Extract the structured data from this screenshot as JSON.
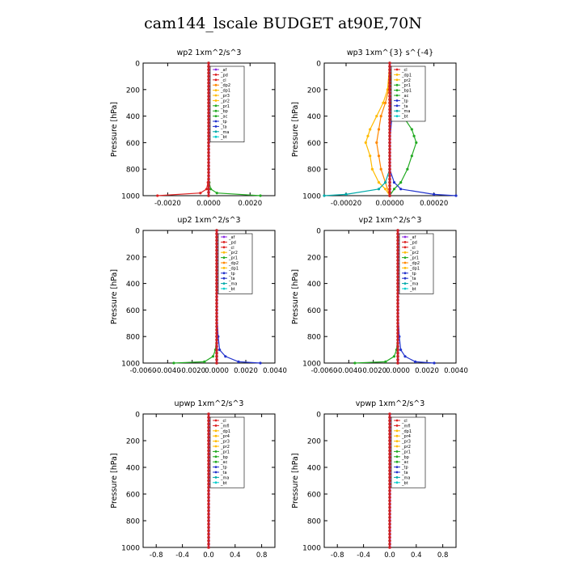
{
  "title": "cam144_lscale  BUDGET at90E,70N",
  "y_axis_label": "Pressure [hPa]",
  "y_ticks": [
    "0",
    "200",
    "400",
    "600",
    "800",
    "1000"
  ],
  "chart_data": [
    {
      "type": "line",
      "title": "wp2   1xm^2/s^3",
      "ylabel": "Pressure [hPa]",
      "ylim": [
        1000,
        0
      ],
      "xlim": [
        -0.0032,
        0.0032
      ],
      "xticks": [
        -0.002,
        0.0,
        0.002
      ],
      "xtick_labels": [
        "-0.0020",
        "0.0000",
        "0.0020"
      ],
      "legend_position": "top-right-inside",
      "legend": [
        "_af",
        "_pd",
        "_cl",
        "_dp2",
        "_dp1",
        "_pr3",
        "_pr2",
        "_pr1",
        "_bp",
        "_ac",
        "_tp",
        "_ta",
        "_ma",
        "_bt"
      ],
      "series": [
        {
          "name": "_pr1",
          "color": "#22aa22",
          "y": [
            0,
            200,
            400,
            600,
            800,
            900,
            950,
            980,
            1000
          ],
          "x": [
            0,
            0,
            0,
            0,
            0,
            3e-05,
            0.0001,
            0.0004,
            0.0025
          ]
        },
        {
          "name": "_pd",
          "color": "#dd2222",
          "y": [
            0,
            200,
            400,
            600,
            800,
            900,
            950,
            980,
            1000
          ],
          "x": [
            0,
            0,
            0,
            0,
            0,
            -3e-05,
            -0.0001,
            -0.0004,
            -0.0025
          ]
        },
        {
          "name": "_af",
          "color": "#8a2be2",
          "y": [
            0,
            200,
            400,
            600,
            800,
            1000
          ],
          "x": [
            0,
            0,
            0,
            0,
            0,
            0
          ]
        },
        {
          "name": "_bt",
          "color": "#00cccc",
          "y": [
            0,
            200,
            400,
            600,
            800,
            1000
          ],
          "x": [
            0,
            0,
            0,
            0,
            0,
            0
          ]
        }
      ]
    },
    {
      "type": "line",
      "title": "wp3   1xm^{3} s^{-4}",
      "ylabel": "Pressure [hPa]",
      "ylim": [
        1000,
        0
      ],
      "xlim": [
        -0.0003,
        0.0003
      ],
      "xticks": [
        -0.0002,
        0.0,
        0.0002
      ],
      "xtick_labels": [
        "-0.00020",
        "0.00000",
        "0.00020"
      ],
      "legend_position": "top-right-inside",
      "legend": [
        "_cl",
        "_dp1",
        "_pr2",
        "_pr1",
        "_bp1",
        "_ac",
        "_tp",
        "_ta",
        "_ma",
        "_bt"
      ],
      "series": [
        {
          "name": "_ac",
          "color": "#22aa22",
          "y": [
            0,
            200,
            300,
            400,
            500,
            550,
            600,
            700,
            800,
            900,
            950,
            1000
          ],
          "x": [
            0,
            1e-05,
            3e-05,
            6e-05,
            0.0001,
            0.00011,
            0.00012,
            0.0001,
            8e-05,
            5e-05,
            2e-05,
            0
          ]
        },
        {
          "name": "_pr2",
          "color": "#ffbb00",
          "y": [
            0,
            200,
            300,
            400,
            500,
            550,
            600,
            700,
            800,
            900,
            950,
            1000
          ],
          "x": [
            0,
            -1e-05,
            -3e-05,
            -6e-05,
            -9e-05,
            -0.0001,
            -0.00011,
            -9e-05,
            -8e-05,
            -5e-05,
            -2e-05,
            0
          ]
        },
        {
          "name": "_pr1",
          "color": "#ff8800",
          "y": [
            0,
            200,
            300,
            400,
            500,
            600,
            700,
            800,
            900,
            1000
          ],
          "x": [
            0,
            -5e-06,
            -2e-05,
            -4e-05,
            -5e-05,
            -6e-05,
            -5e-05,
            -4e-05,
            -2e-05,
            0
          ]
        },
        {
          "name": "_tp",
          "color": "#2233cc",
          "y": [
            0,
            200,
            400,
            600,
            800,
            900,
            950,
            990,
            1000
          ],
          "x": [
            0,
            0,
            1e-05,
            0,
            0,
            2e-05,
            5e-05,
            0.0002,
            0.0003
          ]
        },
        {
          "name": "_ma",
          "color": "#00aaaa",
          "y": [
            0,
            200,
            400,
            600,
            800,
            900,
            950,
            990,
            1000
          ],
          "x": [
            0,
            0,
            0,
            0,
            0,
            -2e-05,
            -5e-05,
            -0.0002,
            -0.0003
          ]
        },
        {
          "name": "_cl",
          "color": "#dd2222",
          "y": [
            0,
            200,
            400,
            600,
            800,
            1000
          ],
          "x": [
            0,
            0,
            0,
            0,
            0,
            0
          ]
        },
        {
          "name": "_bt",
          "color": "#8a2be2",
          "y": [
            0,
            200,
            400,
            600,
            800,
            1000
          ],
          "x": [
            0,
            0,
            0,
            0,
            0,
            0
          ]
        }
      ]
    },
    {
      "type": "line",
      "title": "up2   1xm^2/s^3",
      "ylabel": "Pressure [hPa]",
      "ylim": [
        1000,
        0
      ],
      "xlim": [
        -0.006,
        0.004
      ],
      "xticks": [
        -0.006,
        -0.004,
        -0.002,
        0.0,
        0.002,
        0.004
      ],
      "xtick_labels": [
        "-0.0060",
        "-0.0040",
        "-0.0020",
        "0.0000",
        "0.0020",
        "0.0040"
      ],
      "legend_position": "top-right-inside",
      "legend": [
        "_af",
        "_pd",
        "_cl",
        "_pr2",
        "_pr1",
        "_dp2",
        "_dp1",
        "_tp",
        "_ta",
        "_ma",
        "_bt"
      ],
      "series": [
        {
          "name": "_dp1",
          "color": "#22aa22",
          "y": [
            0,
            200,
            400,
            600,
            800,
            900,
            950,
            990,
            1000
          ],
          "x": [
            0,
            0,
            0,
            0,
            0,
            -0.0001,
            -0.0003,
            -0.001,
            -0.0035
          ]
        },
        {
          "name": "_tp",
          "color": "#2233cc",
          "y": [
            0,
            200,
            400,
            600,
            800,
            900,
            950,
            990,
            1000
          ],
          "x": [
            0,
            0,
            0,
            0,
            0.0001,
            0.0002,
            0.0006,
            0.0015,
            0.003
          ]
        },
        {
          "name": "_pd",
          "color": "#dd2222",
          "y": [
            0,
            200,
            400,
            600,
            800,
            1000
          ],
          "x": [
            0,
            0,
            0,
            0,
            0,
            0
          ]
        },
        {
          "name": "_bt",
          "color": "#8a2be2",
          "y": [
            0,
            200,
            400,
            600,
            800,
            1000
          ],
          "x": [
            0,
            0,
            0,
            0,
            0,
            0
          ]
        }
      ]
    },
    {
      "type": "line",
      "title": "vp2   1xm^2/s^3",
      "ylabel": "Pressure [hPa]",
      "ylim": [
        1000,
        0
      ],
      "xlim": [
        -0.006,
        0.004
      ],
      "xticks": [
        -0.006,
        -0.004,
        -0.002,
        0.0,
        0.002,
        0.004
      ],
      "xtick_labels": [
        "-0.0060",
        "-0.0040",
        "-0.0020",
        "0.0000",
        "0.0020",
        "0.0040"
      ],
      "legend_position": "top-right-inside",
      "legend": [
        "_af",
        "_pd",
        "_cl",
        "_pr2",
        "_pr1",
        "_dp2",
        "_dp1",
        "_tp",
        "_ta",
        "_ma",
        "_bt"
      ],
      "series": [
        {
          "name": "_dp1",
          "color": "#22aa22",
          "y": [
            0,
            200,
            400,
            600,
            800,
            900,
            950,
            990,
            1000
          ],
          "x": [
            0,
            0,
            0,
            0,
            0,
            -0.0001,
            -0.0003,
            -0.001,
            -0.0035
          ]
        },
        {
          "name": "_tp",
          "color": "#2233cc",
          "y": [
            0,
            200,
            400,
            600,
            800,
            900,
            950,
            990,
            1000
          ],
          "x": [
            0,
            0,
            0,
            0,
            0.0001,
            0.0002,
            0.0005,
            0.0012,
            0.0025
          ]
        },
        {
          "name": "_pd",
          "color": "#dd2222",
          "y": [
            0,
            200,
            400,
            600,
            800,
            1000
          ],
          "x": [
            0,
            0,
            0,
            0,
            0,
            0
          ]
        },
        {
          "name": "_bt",
          "color": "#8a2be2",
          "y": [
            0,
            200,
            400,
            600,
            800,
            1000
          ],
          "x": [
            0,
            0,
            0,
            0,
            0,
            0
          ]
        }
      ]
    },
    {
      "type": "line",
      "title": "upwp   1xm^2/s^3",
      "ylabel": "Pressure [hPa]",
      "ylim": [
        1000,
        0
      ],
      "xlim": [
        -1.0,
        1.0
      ],
      "xticks": [
        -0.8,
        -0.4,
        0.0,
        0.4,
        0.8
      ],
      "xtick_labels": [
        "-0.8",
        "-0.4",
        "0.0",
        "0.4",
        "0.8"
      ],
      "legend_position": "top-right-inside",
      "legend": [
        "_cl",
        "_mfl",
        "_dp1",
        "_pr4",
        "_pr3",
        "_pr2",
        "_pr1",
        "_bp",
        "_ac",
        "_tp",
        "_ta",
        "_ma",
        "_bt"
      ],
      "series": [
        {
          "name": "_cl",
          "color": "#dd2222",
          "y": [
            0,
            200,
            400,
            600,
            800,
            1000
          ],
          "x": [
            0,
            0,
            0,
            0,
            0,
            0
          ]
        },
        {
          "name": "_bt",
          "color": "#8a2be2",
          "y": [
            0,
            200,
            400,
            600,
            800,
            1000
          ],
          "x": [
            0,
            0,
            0,
            0,
            0,
            0
          ]
        }
      ]
    },
    {
      "type": "line",
      "title": "vpwp   1xm^2/s^3",
      "ylabel": "Pressure [hPa]",
      "ylim": [
        1000,
        0
      ],
      "xlim": [
        -1.0,
        1.0
      ],
      "xticks": [
        -0.8,
        -0.4,
        0.0,
        0.4,
        0.8
      ],
      "xtick_labels": [
        "-0.8",
        "-0.4",
        "0.0",
        "0.4",
        "0.8"
      ],
      "legend_position": "top-right-inside",
      "legend": [
        "_cl",
        "_mfl",
        "_dp1",
        "_pr4",
        "_pr3",
        "_pr2",
        "_pr1",
        "_bp",
        "_ac",
        "_tp",
        "_ta",
        "_ma",
        "_bt"
      ],
      "series": [
        {
          "name": "_cl",
          "color": "#dd2222",
          "y": [
            0,
            200,
            400,
            600,
            800,
            1000
          ],
          "x": [
            0,
            0,
            0,
            0,
            0,
            0
          ]
        },
        {
          "name": "_bt",
          "color": "#8a2be2",
          "y": [
            0,
            200,
            400,
            600,
            800,
            1000
          ],
          "x": [
            0,
            0,
            0,
            0,
            0,
            0
          ]
        }
      ]
    }
  ],
  "legend_colors": {
    "_af": "#8a2be2",
    "_pd": "#dd2222",
    "_cl": "#dd2222",
    "_mfl": "#dd2222",
    "_dp2": "#ff8800",
    "_dp1": "#ffbb00",
    "_pr4": "#ffbb00",
    "_pr3": "#ffbb00",
    "_pr2": "#ffbb00",
    "_pr1": "#22aa22",
    "_bp": "#22aa22",
    "_bp1": "#22aa22",
    "_ac": "#22aa22",
    "_tp": "#2233cc",
    "_ta": "#2233cc",
    "_ma": "#00aaaa",
    "_bt": "#00cccc"
  }
}
